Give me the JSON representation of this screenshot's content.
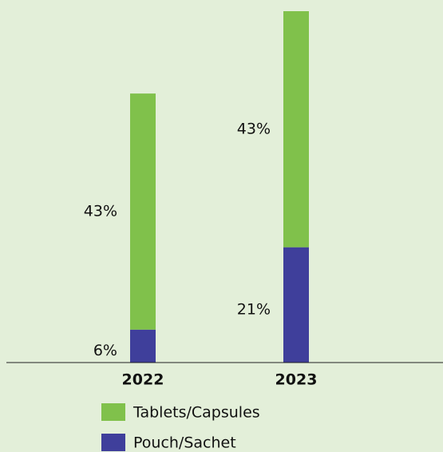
{
  "chart_data": {
    "type": "stacked_bar",
    "categories": [
      "2022",
      "2023"
    ],
    "series": [
      {
        "name": "Pouch/Sachet",
        "color": "#3f3f9b",
        "values": [
          6,
          21
        ],
        "value_labels": [
          "6%",
          "21%"
        ]
      },
      {
        "name": "Tablets/Capsules",
        "color": "#80c14b",
        "values": [
          43,
          43
        ],
        "value_labels": [
          "43%",
          "43%"
        ]
      }
    ]
  }
}
